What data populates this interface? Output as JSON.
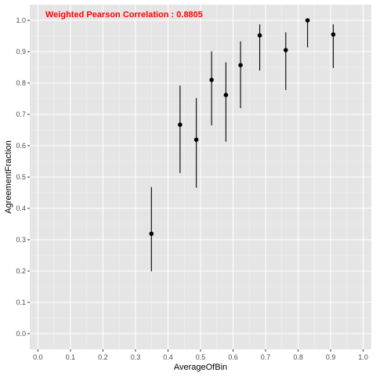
{
  "chart_data": {
    "type": "scatter",
    "annotation": "Weighted Pearson Correlation :  0.8805",
    "xlabel": "AverageOfBin",
    "ylabel": "AgreementFraction",
    "xlim": [
      -0.025,
      1.025
    ],
    "ylim": [
      -0.05,
      1.05
    ],
    "x_ticks": [
      0.0,
      0.1,
      0.2,
      0.3,
      0.4,
      0.5,
      0.6,
      0.7,
      0.8,
      0.9,
      1.0
    ],
    "y_ticks": [
      0.0,
      0.1,
      0.2,
      0.3,
      0.4,
      0.5,
      0.6,
      0.7,
      0.8,
      0.9,
      1.0
    ],
    "x_tick_labels": [
      "0.0",
      "0.1",
      "0.2",
      "0.3",
      "0.4",
      "0.5",
      "0.6",
      "0.7",
      "0.8",
      "0.9",
      "1.0"
    ],
    "y_tick_labels": [
      "0.0",
      "0.1",
      "0.2",
      "0.3",
      "0.4",
      "0.5",
      "0.6",
      "0.7",
      "0.8",
      "0.9",
      "1.0"
    ],
    "grid": true,
    "points": [
      {
        "x": 0.349,
        "y": 0.319,
        "ymin": 0.199,
        "ymax": 0.468
      },
      {
        "x": 0.437,
        "y": 0.667,
        "ymin": 0.513,
        "ymax": 0.792
      },
      {
        "x": 0.487,
        "y": 0.619,
        "ymin": 0.466,
        "ymax": 0.752
      },
      {
        "x": 0.534,
        "y": 0.81,
        "ymin": 0.665,
        "ymax": 0.901
      },
      {
        "x": 0.578,
        "y": 0.762,
        "ymin": 0.613,
        "ymax": 0.866
      },
      {
        "x": 0.623,
        "y": 0.857,
        "ymin": 0.72,
        "ymax": 0.933
      },
      {
        "x": 0.682,
        "y": 0.952,
        "ymin": 0.84,
        "ymax": 0.987
      },
      {
        "x": 0.762,
        "y": 0.905,
        "ymin": 0.778,
        "ymax": 0.962
      },
      {
        "x": 0.829,
        "y": 1.0,
        "ymin": 0.914,
        "ymax": 1.0
      },
      {
        "x": 0.908,
        "y": 0.955,
        "ymin": 0.848,
        "ymax": 0.987
      }
    ]
  },
  "colors": {
    "panel_background": "#e5e5e5",
    "gridline_major": "#ffffff",
    "gridline_minor": "#f2f2f2",
    "point": "#000000",
    "errorbar": "#000000",
    "annotation_text": "#ff0000",
    "tick_text": "#4d4d4d"
  }
}
